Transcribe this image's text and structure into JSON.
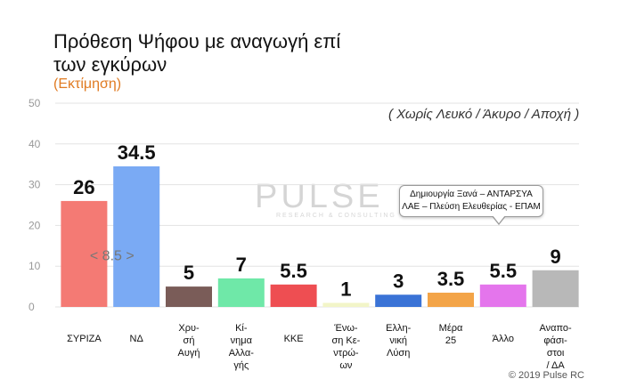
{
  "title": "Πρόθεση Ψήφου με αναγωγή επί των εγκύρων",
  "subtitle": "(Εκτίμηση)",
  "note": "( Χωρίς Λευκό / Άκυρο / Αποχή )",
  "footer": "© 2019 Pulse RC",
  "watermark": {
    "logo": "PULSE",
    "sub": "RESEARCH & CONSULTING"
  },
  "callout": {
    "line1": "Δημιουργία Ξανά – ΑΝΤΑΡΣΥΑ",
    "line2": "ΛΑΕ – Πλεύση Ελευθερίας - ΕΠΑΜ"
  },
  "difference_label": "< 8.5 >",
  "chart_data": {
    "type": "bar",
    "ylim": [
      0,
      50
    ],
    "yticks": [
      0,
      10,
      20,
      30,
      40,
      50
    ],
    "grid": true,
    "xlabel": "",
    "ylabel": "",
    "categories": [
      [
        "ΣΥΡΙΖΑ"
      ],
      [
        "ΝΔ"
      ],
      [
        "Χρυ-",
        "σή",
        "Αυγή"
      ],
      [
        "Κί-",
        "νημα",
        "Αλλα-",
        "γής"
      ],
      [
        "ΚΚΕ"
      ],
      [
        "Ένω-",
        "ση Κε-",
        "ντρώ-",
        "ων"
      ],
      [
        "Ελλη-",
        "νική",
        "Λύση"
      ],
      [
        "Μέρα",
        "25"
      ],
      [
        "Άλλο"
      ],
      [
        "Αναπο-",
        "φάσι-",
        "στοι",
        "/ ΔΑ"
      ]
    ],
    "values": [
      26,
      34.5,
      5,
      7,
      5.5,
      1,
      3,
      3.5,
      5.5,
      9
    ],
    "value_labels": [
      "26",
      "34.5",
      "5",
      "7",
      "5.5",
      "1",
      "3",
      "3.5",
      "5.5",
      "9"
    ],
    "colors": [
      "#f47a74",
      "#7aaaf4",
      "#7a5c58",
      "#6fe8a8",
      "#ee4e52",
      "#f2f5c8",
      "#3a73d6",
      "#f3a448",
      "#e475ec",
      "#b8b8b8"
    ]
  }
}
